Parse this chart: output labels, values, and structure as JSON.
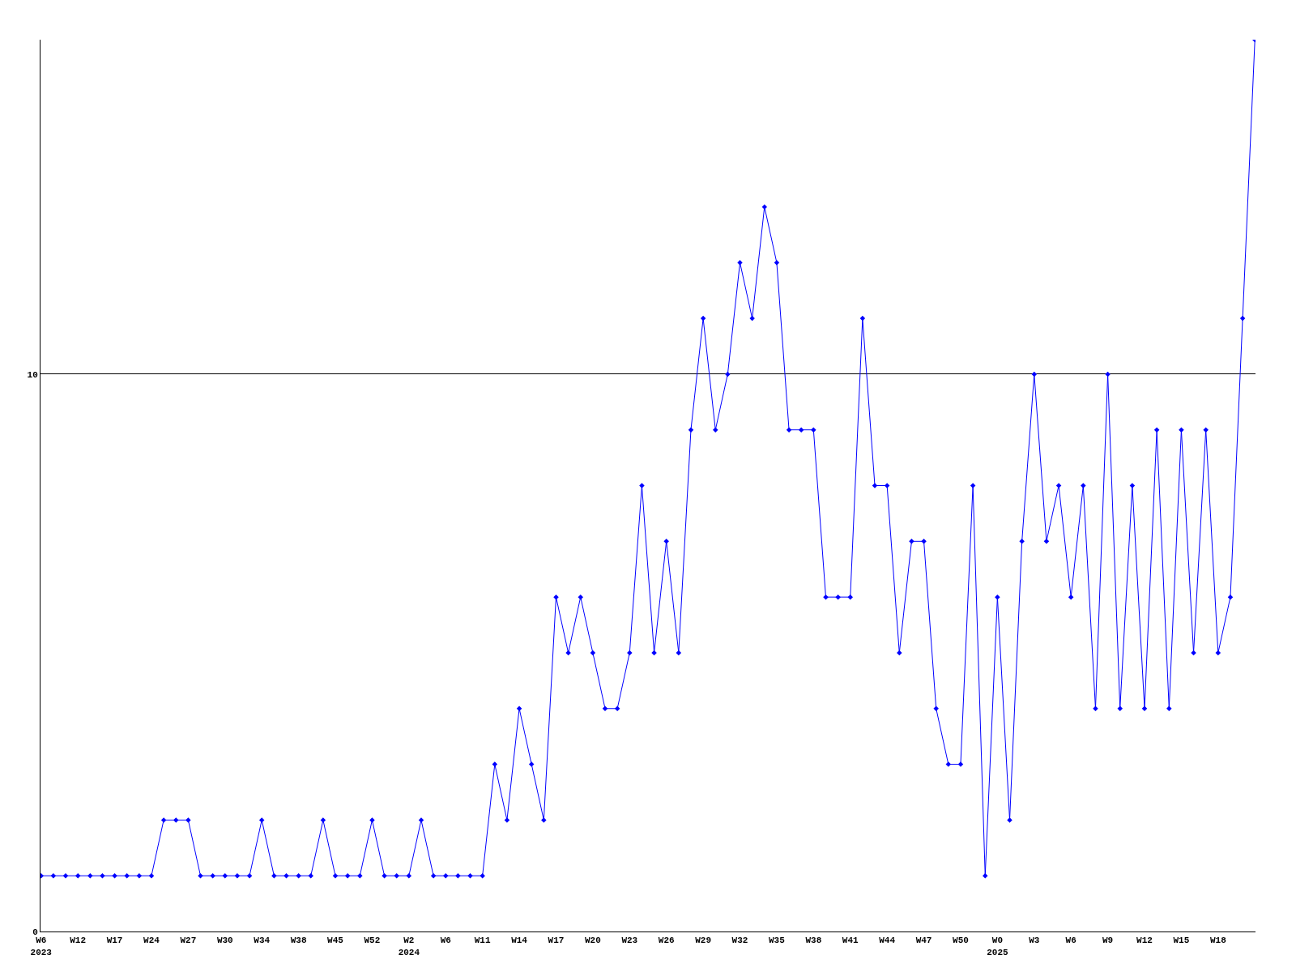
{
  "chart_data": {
    "type": "line",
    "categories": [
      "W6\n2023",
      null,
      null,
      "W12",
      null,
      null,
      "W17",
      null,
      null,
      "W24",
      null,
      null,
      "W27",
      null,
      null,
      "W30",
      null,
      null,
      "W34",
      null,
      null,
      "W38",
      null,
      null,
      "W45",
      null,
      null,
      "W52",
      null,
      null,
      "W2\n2024",
      null,
      null,
      "W6",
      null,
      null,
      "W11",
      null,
      null,
      "W14",
      null,
      null,
      "W17",
      null,
      null,
      "W20",
      null,
      null,
      "W23",
      null,
      null,
      "W26",
      null,
      null,
      "W29",
      null,
      null,
      "W32",
      null,
      null,
      "W35",
      null,
      null,
      "W38",
      null,
      null,
      "W41",
      null,
      null,
      "W44",
      null,
      null,
      "W47",
      null,
      null,
      "W50",
      null,
      null,
      "W0\n2025",
      null,
      null,
      "W3",
      null,
      null,
      "W6",
      null,
      null,
      "W9",
      null,
      null,
      "W12",
      null,
      null,
      "W15",
      null,
      null,
      "W18",
      null,
      null,
      null
    ],
    "values": [
      1,
      1,
      1,
      1,
      1,
      1,
      1,
      1,
      1,
      1,
      2,
      2,
      2,
      1,
      1,
      1,
      1,
      1,
      2,
      1,
      1,
      1,
      1,
      2,
      1,
      1,
      1,
      2,
      1,
      1,
      1,
      2,
      1,
      1,
      1,
      1,
      1,
      3,
      2,
      4,
      3,
      2,
      6,
      5,
      6,
      5,
      4,
      4,
      5,
      8,
      5,
      7,
      5,
      9,
      11,
      9,
      10,
      12,
      11,
      13,
      12,
      9,
      9,
      9,
      6,
      6,
      6,
      11,
      8,
      8,
      5,
      7,
      7,
      4,
      3,
      3,
      8,
      1,
      6,
      2,
      7,
      10,
      7,
      8,
      6,
      8,
      4,
      10,
      4,
      8,
      4,
      9,
      4,
      9,
      5,
      9,
      5,
      6,
      11,
      16
    ],
    "color": "#0000ff",
    "ylim": [
      0,
      16
    ],
    "yticks": [
      0,
      10
    ],
    "grid": "y",
    "marker": "diamond",
    "line_style": "solid"
  }
}
